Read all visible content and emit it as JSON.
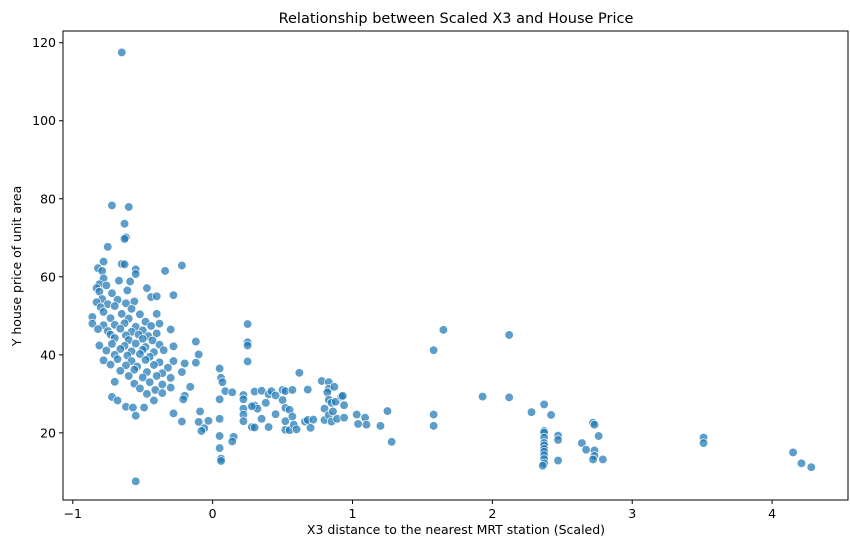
{
  "chart_data": {
    "type": "scatter",
    "title": "Relationship between Scaled X3 and House Price",
    "xlabel": "X3 distance to the nearest MRT station (Scaled)",
    "ylabel": "Y house price of unit area",
    "xlim": [
      -1.07,
      4.55
    ],
    "ylim": [
      2.8,
      123.0
    ],
    "xticks": [
      -1,
      0,
      1,
      2,
      3,
      4
    ],
    "yticks": [
      20,
      40,
      60,
      80,
      100,
      120
    ],
    "grid": false,
    "legend": "none",
    "point_color": "#1f77b4",
    "points": [
      [
        -0.65,
        117.5
      ],
      [
        -0.55,
        7.6
      ],
      [
        -0.72,
        78.3
      ],
      [
        -0.6,
        77.9
      ],
      [
        -0.75,
        67.7
      ],
      [
        -0.63,
        73.6
      ],
      [
        -0.62,
        70.1
      ],
      [
        -0.63,
        69.7
      ],
      [
        -0.78,
        63.9
      ],
      [
        -0.65,
        63.3
      ],
      [
        -0.63,
        63.2
      ],
      [
        -0.22,
        62.9
      ],
      [
        -0.82,
        62.2
      ],
      [
        -0.79,
        61.5
      ],
      [
        -0.55,
        61.9
      ],
      [
        -0.34,
        61.5
      ],
      [
        -0.55,
        60.7
      ],
      [
        -0.78,
        59.6
      ],
      [
        -0.67,
        59.0
      ],
      [
        -0.81,
        58.1
      ],
      [
        -0.59,
        58.8
      ],
      [
        -0.76,
        57.8
      ],
      [
        -0.83,
        57.1
      ],
      [
        -0.47,
        57.1
      ],
      [
        -0.81,
        56.2
      ],
      [
        -0.61,
        56.5
      ],
      [
        -0.72,
        55.8
      ],
      [
        -0.28,
        55.3
      ],
      [
        -0.44,
        54.8
      ],
      [
        -0.4,
        55.0
      ],
      [
        -0.79,
        54.3
      ],
      [
        -0.68,
        54.1
      ],
      [
        -0.83,
        53.5
      ],
      [
        -0.75,
        53.0
      ],
      [
        -0.62,
        53.2
      ],
      [
        -0.56,
        53.7
      ],
      [
        -0.8,
        52.2
      ],
      [
        -0.7,
        52.5
      ],
      [
        -0.58,
        51.8
      ],
      [
        -0.78,
        51.0
      ],
      [
        -0.65,
        50.5
      ],
      [
        -0.52,
        50.4
      ],
      [
        -0.4,
        50.5
      ],
      [
        -0.86,
        49.7
      ],
      [
        -0.73,
        49.4
      ],
      [
        -0.6,
        49.3
      ],
      [
        -0.48,
        48.5
      ],
      [
        -0.86,
        48.0
      ],
      [
        -0.78,
        47.6
      ],
      [
        -0.7,
        47.7
      ],
      [
        -0.63,
        48.1
      ],
      [
        -0.55,
        47.2
      ],
      [
        -0.44,
        47.4
      ],
      [
        -0.38,
        48.0
      ],
      [
        -0.82,
        46.6
      ],
      [
        -0.75,
        46.1
      ],
      [
        -0.66,
        46.7
      ],
      [
        -0.58,
        45.9
      ],
      [
        -0.5,
        46.3
      ],
      [
        -0.3,
        46.5
      ],
      [
        -0.73,
        45.2
      ],
      [
        -0.62,
        45.0
      ],
      [
        -0.53,
        45.2
      ],
      [
        -0.46,
        44.8
      ],
      [
        -0.4,
        45.5
      ],
      [
        -0.7,
        44.3
      ],
      [
        -0.6,
        43.8
      ],
      [
        -0.5,
        44.1
      ],
      [
        -0.43,
        43.7
      ],
      [
        -0.12,
        43.4
      ],
      [
        -0.81,
        42.4
      ],
      [
        -0.72,
        42.8
      ],
      [
        -0.63,
        42.3
      ],
      [
        -0.55,
        42.9
      ],
      [
        -0.48,
        42.0
      ],
      [
        -0.38,
        42.6
      ],
      [
        -0.28,
        42.2
      ],
      [
        -0.76,
        41.1
      ],
      [
        -0.66,
        41.5
      ],
      [
        -0.58,
        40.9
      ],
      [
        -0.5,
        41.3
      ],
      [
        -0.42,
        40.7
      ],
      [
        -0.35,
        41.2
      ],
      [
        -0.7,
        40.0
      ],
      [
        -0.61,
        39.8
      ],
      [
        -0.52,
        40.2
      ],
      [
        -0.45,
        39.5
      ],
      [
        -0.1,
        40.1
      ],
      [
        -0.78,
        38.6
      ],
      [
        -0.68,
        38.9
      ],
      [
        -0.58,
        38.4
      ],
      [
        -0.48,
        38.7
      ],
      [
        -0.38,
        38.1
      ],
      [
        -0.28,
        38.4
      ],
      [
        -0.2,
        37.8
      ],
      [
        -0.12,
        38.0
      ],
      [
        -0.73,
        37.5
      ],
      [
        -0.62,
        37.3
      ],
      [
        -0.54,
        37.0
      ],
      [
        -0.42,
        37.4
      ],
      [
        -0.32,
        36.7
      ],
      [
        -0.66,
        35.9
      ],
      [
        -0.56,
        36.2
      ],
      [
        -0.47,
        35.6
      ],
      [
        -0.36,
        35.3
      ],
      [
        -0.22,
        35.6
      ],
      [
        -0.6,
        34.6
      ],
      [
        -0.5,
        34.2
      ],
      [
        -0.4,
        34.6
      ],
      [
        -0.3,
        34.1
      ],
      [
        -0.7,
        33.1
      ],
      [
        -0.56,
        32.6
      ],
      [
        -0.45,
        33.0
      ],
      [
        -0.36,
        32.4
      ],
      [
        -0.52,
        31.4
      ],
      [
        -0.41,
        31.0
      ],
      [
        -0.3,
        31.6
      ],
      [
        -0.16,
        31.8
      ],
      [
        -0.47,
        30.0
      ],
      [
        -0.36,
        30.2
      ],
      [
        -0.2,
        29.5
      ],
      [
        -0.72,
        29.2
      ],
      [
        -0.68,
        28.3
      ],
      [
        -0.42,
        28.3
      ],
      [
        -0.21,
        28.6
      ],
      [
        -0.62,
        26.7
      ],
      [
        -0.57,
        26.5
      ],
      [
        -0.49,
        26.5
      ],
      [
        -0.28,
        25.0
      ],
      [
        -0.55,
        24.4
      ],
      [
        -0.09,
        25.5
      ],
      [
        -0.22,
        22.9
      ],
      [
        -0.1,
        22.8
      ],
      [
        -0.06,
        21.2
      ],
      [
        -0.08,
        20.5
      ],
      [
        -0.03,
        23.1
      ],
      [
        0.05,
        36.5
      ],
      [
        0.06,
        34.1
      ],
      [
        0.07,
        33.0
      ],
      [
        0.09,
        30.7
      ],
      [
        0.05,
        28.6
      ],
      [
        0.05,
        23.6
      ],
      [
        0.05,
        19.2
      ],
      [
        0.05,
        16.1
      ],
      [
        0.06,
        13.4
      ],
      [
        0.06,
        12.8
      ],
      [
        0.15,
        19.0
      ],
      [
        0.14,
        17.8
      ],
      [
        0.14,
        30.4
      ],
      [
        0.25,
        47.9
      ],
      [
        0.25,
        43.2
      ],
      [
        0.25,
        42.4
      ],
      [
        0.25,
        38.3
      ],
      [
        0.22,
        29.7
      ],
      [
        0.22,
        28.6
      ],
      [
        0.22,
        26.2
      ],
      [
        0.22,
        24.7
      ],
      [
        0.22,
        23.0
      ],
      [
        0.3,
        27.0
      ],
      [
        0.32,
        26.2
      ],
      [
        0.28,
        26.8
      ],
      [
        0.28,
        21.5
      ],
      [
        0.3,
        21.4
      ],
      [
        0.3,
        30.6
      ],
      [
        0.35,
        30.8
      ],
      [
        0.35,
        23.6
      ],
      [
        0.38,
        27.7
      ],
      [
        0.4,
        21.5
      ],
      [
        0.4,
        29.9
      ],
      [
        0.42,
        30.7
      ],
      [
        0.45,
        29.6
      ],
      [
        0.45,
        24.8
      ],
      [
        0.5,
        31.0
      ],
      [
        0.5,
        28.4
      ],
      [
        0.52,
        30.7
      ],
      [
        0.52,
        26.4
      ],
      [
        0.52,
        23.0
      ],
      [
        0.52,
        20.8
      ],
      [
        0.55,
        25.9
      ],
      [
        0.55,
        20.7
      ],
      [
        0.57,
        24.2
      ],
      [
        0.58,
        22.1
      ],
      [
        0.57,
        31.0
      ],
      [
        0.6,
        20.9
      ],
      [
        0.62,
        35.4
      ],
      [
        0.66,
        22.9
      ],
      [
        0.68,
        23.3
      ],
      [
        0.68,
        31.1
      ],
      [
        0.7,
        21.3
      ],
      [
        0.72,
        23.4
      ],
      [
        0.78,
        33.3
      ],
      [
        0.8,
        26.2
      ],
      [
        0.8,
        23.3
      ],
      [
        0.83,
        33.0
      ],
      [
        0.83,
        31.3
      ],
      [
        0.82,
        30.4
      ],
      [
        0.83,
        28.5
      ],
      [
        0.83,
        24.6
      ],
      [
        0.85,
        27.7
      ],
      [
        0.85,
        22.9
      ],
      [
        0.86,
        25.5
      ],
      [
        0.87,
        31.8
      ],
      [
        0.88,
        28.0
      ],
      [
        0.89,
        23.6
      ],
      [
        0.92,
        29.3
      ],
      [
        0.93,
        29.5
      ],
      [
        0.94,
        27.1
      ],
      [
        0.94,
        23.9
      ],
      [
        1.03,
        24.7
      ],
      [
        1.04,
        22.3
      ],
      [
        1.09,
        23.9
      ],
      [
        1.1,
        22.1
      ],
      [
        1.2,
        21.8
      ],
      [
        1.25,
        25.6
      ],
      [
        1.28,
        17.7
      ],
      [
        1.58,
        41.2
      ],
      [
        1.58,
        24.7
      ],
      [
        1.58,
        21.8
      ],
      [
        1.65,
        46.4
      ],
      [
        1.93,
        29.3
      ],
      [
        2.12,
        45.1
      ],
      [
        2.12,
        29.1
      ],
      [
        2.28,
        25.3
      ],
      [
        2.37,
        27.3
      ],
      [
        2.37,
        20.5
      ],
      [
        2.37,
        20.1
      ],
      [
        2.37,
        18.8
      ],
      [
        2.37,
        17.4
      ],
      [
        2.37,
        16.8
      ],
      [
        2.37,
        15.9
      ],
      [
        2.37,
        15.2
      ],
      [
        2.37,
        14.3
      ],
      [
        2.37,
        13.3
      ],
      [
        2.37,
        12.2
      ],
      [
        2.36,
        11.6
      ],
      [
        2.42,
        24.6
      ],
      [
        2.47,
        19.3
      ],
      [
        2.47,
        18.2
      ],
      [
        2.47,
        12.9
      ],
      [
        2.64,
        17.4
      ],
      [
        2.67,
        15.7
      ],
      [
        2.72,
        22.6
      ],
      [
        2.73,
        22.1
      ],
      [
        2.73,
        15.5
      ],
      [
        2.73,
        14.1
      ],
      [
        2.72,
        13.2
      ],
      [
        2.76,
        19.2
      ],
      [
        2.79,
        13.2
      ],
      [
        3.51,
        18.8
      ],
      [
        3.51,
        17.4
      ],
      [
        4.15,
        15.0
      ],
      [
        4.21,
        12.2
      ],
      [
        4.28,
        11.2
      ]
    ]
  }
}
